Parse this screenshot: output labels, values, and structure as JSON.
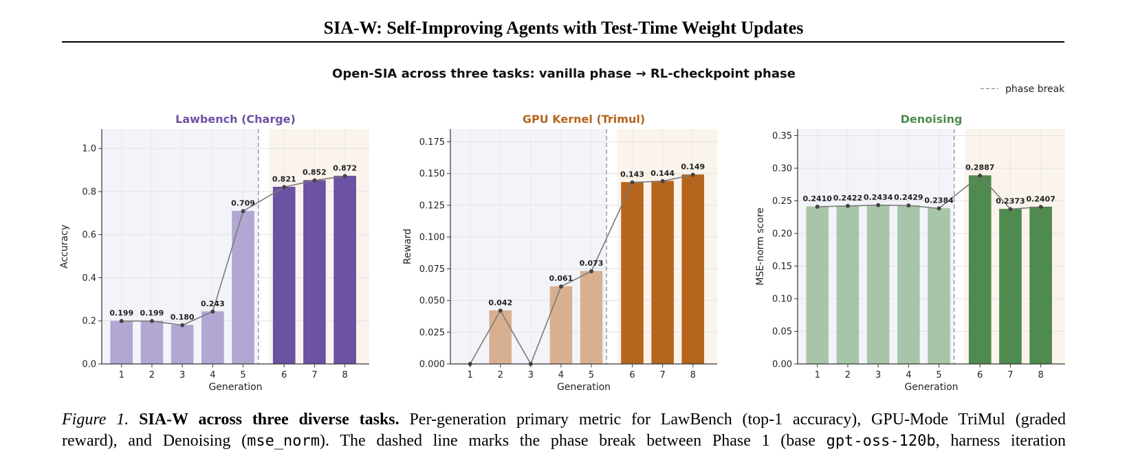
{
  "paper": {
    "title": "SIA-W: Self-Improving Agents with Test-Time Weight Updates"
  },
  "figure": {
    "suptitle": "Open-SIA across three tasks: vanilla phase → RL-checkpoint phase",
    "legend_label": "phase break",
    "colors": {
      "lawbench": "#6b52a3",
      "gpu": "#b5651d",
      "denoising": "#4f8a4f"
    }
  },
  "caption": {
    "label": "Figure 1.",
    "lead": "SIA-W across three diverse tasks.",
    "t1": " Per-generation primary metric for LawBench (top-1 accuracy), GPU-Mode TriMul (graded",
    "t2": "reward), and Denoising (",
    "code1": "mse_norm",
    "t3": "). The dashed line marks the phase break between Phase 1 (base ",
    "code2": "gpt-oss-120b",
    "t4": ", harness iteration"
  },
  "chart_data": [
    {
      "type": "bar",
      "title": "Lawbench (Charge)",
      "xlabel": "Generation",
      "ylabel": "Accuracy",
      "categories": [
        "1",
        "2",
        "3",
        "4",
        "5",
        "6",
        "7",
        "8"
      ],
      "values": [
        0.199,
        0.199,
        0.18,
        0.243,
        0.709,
        0.821,
        0.852,
        0.872
      ],
      "labels": [
        "0.199",
        "0.199",
        "0.180",
        "0.243",
        "0.709",
        "0.821",
        "0.852",
        "0.872"
      ],
      "phase_break_after": 5,
      "ylim": [
        0,
        1.09
      ],
      "yticks": [
        0.0,
        0.2,
        0.4,
        0.6,
        0.8,
        1.0
      ],
      "ytick_labels": [
        "0.0",
        "0.2",
        "0.4",
        "0.6",
        "0.8",
        "1.0"
      ],
      "color": "#6b52a3",
      "phase1_color": "#b2a6d3",
      "grid": true
    },
    {
      "type": "bar",
      "title": "GPU Kernel (Trimul)",
      "xlabel": "Generation",
      "ylabel": "Reward",
      "categories": [
        "1",
        "2",
        "3",
        "4",
        "5",
        "6",
        "7",
        "8"
      ],
      "values": [
        0.0,
        0.042,
        0.0,
        0.061,
        0.073,
        0.143,
        0.144,
        0.149
      ],
      "labels": [
        "",
        "0.042",
        "",
        "0.061",
        "0.073",
        "0.143",
        "0.144",
        "0.149"
      ],
      "phase_break_after": 5,
      "ylim": [
        0,
        0.185
      ],
      "yticks": [
        0.0,
        0.025,
        0.05,
        0.075,
        0.1,
        0.125,
        0.15,
        0.175
      ],
      "ytick_labels": [
        "0.000",
        "0.025",
        "0.050",
        "0.075",
        "0.100",
        "0.125",
        "0.150",
        "0.175"
      ],
      "color": "#b5651d",
      "phase1_color": "#d9b08f",
      "grid": true
    },
    {
      "type": "bar",
      "title": "Denoising",
      "xlabel": "Generation",
      "ylabel": "MSE-norm score",
      "categories": [
        "1",
        "2",
        "3",
        "4",
        "5",
        "6",
        "7",
        "8"
      ],
      "values": [
        0.241,
        0.2422,
        0.2434,
        0.2429,
        0.2384,
        0.2887,
        0.2373,
        0.2407
      ],
      "labels": [
        "0.2410",
        "0.2422",
        "0.2434",
        "0.2429",
        "0.2384",
        "0.2887",
        "0.2373",
        "0.2407"
      ],
      "phase_break_after": 5,
      "ylim": [
        0,
        0.36
      ],
      "yticks": [
        0.0,
        0.05,
        0.1,
        0.15,
        0.2,
        0.25,
        0.3,
        0.35
      ],
      "ytick_labels": [
        "0.00",
        "0.05",
        "0.10",
        "0.15",
        "0.20",
        "0.25",
        "0.30",
        "0.35"
      ],
      "color": "#4f8a4f",
      "phase1_color": "#a9c5a9",
      "grid": true
    }
  ]
}
